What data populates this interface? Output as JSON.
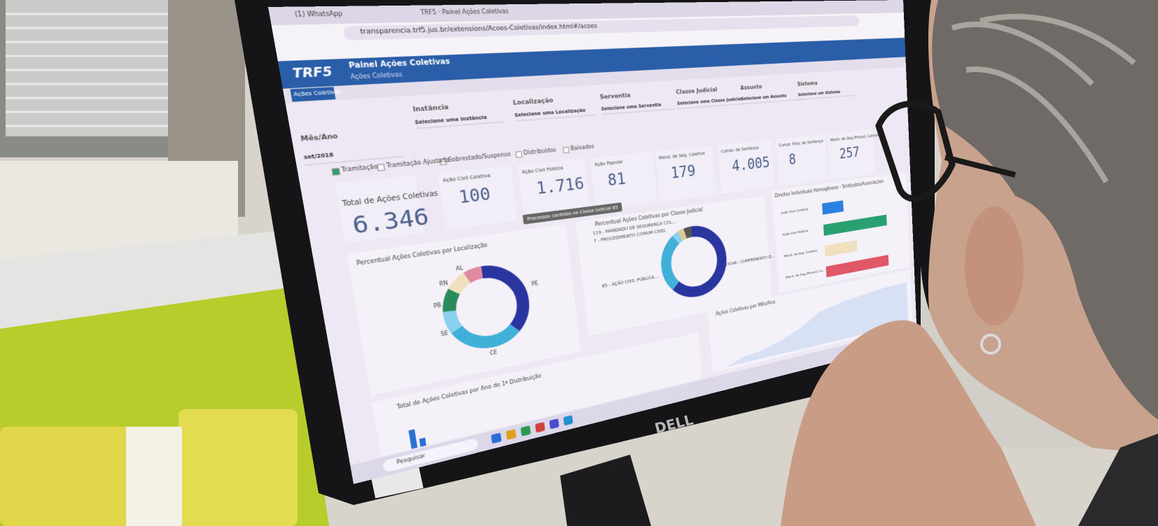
{
  "browser": {
    "tabs": [
      "(1) WhatsApp",
      "TRF5 · Painel Ações Coletivas"
    ],
    "url": "transparencia.trf5.jus.br/extensions/Acoes-Coletivas/index.html#/acoes"
  },
  "header": {
    "logo": "TRF5",
    "title": "Painel Ações Coletivas",
    "subtitle": "Ações Coletivas",
    "tab": "Ações Coletivas"
  },
  "filters": [
    {
      "label": "Mês/Ano",
      "value": "set/2016"
    },
    {
      "label": "Instância",
      "value": "Selecione uma Instância"
    },
    {
      "label": "Localização",
      "value": "Selecione uma Localização"
    },
    {
      "label": "Serventia",
      "value": "Selecione uma Serventia"
    },
    {
      "label": "Classe Judicial",
      "value": "Selecione uma Classe Judicial"
    },
    {
      "label": "Assunto",
      "value": "Selecione um Assunto"
    },
    {
      "label": "Sistema",
      "value": "Selecione um Sistema"
    }
  ],
  "checkboxes": [
    "Tramitação",
    "Tramitação Ajustada",
    "Sobrestado/Suspenso",
    "Distribuídos",
    "Baixados"
  ],
  "kpis": [
    {
      "label": "Total de Ações Coletivas",
      "value": "6.346"
    },
    {
      "label": "Ação Civil Coletiva",
      "value": "100"
    },
    {
      "label": "Ação Civil Pública",
      "value": "1.716"
    },
    {
      "label": "Ação Popular",
      "value": "81"
    },
    {
      "label": "Mand. de Seg. Coletivo",
      "value": "179"
    },
    {
      "label": "Cumpr. de Sentença",
      "value": "4.005"
    },
    {
      "label": "Cumpr. Prov. de Sentença",
      "value": "8"
    },
    {
      "label": "Mand. de Seg./Proced. Comum",
      "value": "257"
    }
  ],
  "tooltip": "Processos contidos na Classe Judicial 65",
  "charts": [
    {
      "title": "Percentual Ações Coletivas por Localização",
      "labels": [
        "AL",
        "RN",
        "PB",
        "SE",
        "CE",
        "PE"
      ]
    },
    {
      "title": "Percentual Ações Coletivas por Classe Judicial",
      "labels": [
        "119 - MANDADO DE SEGURANÇA COL...",
        "7 - PROCEDIMENTO COMUM CÍVEL",
        "65 - AÇÃO CIVIL PÚBLICA...",
        "15148 - CUMPRIMENTO D..."
      ]
    },
    {
      "title": "Direitos Individuais Homogêneos - Sindicatos/Associações",
      "labels": [
        "Ação Civil Coletiva",
        "Ação Civil Pública",
        "Mand. de Seg. Coletivo",
        "Mand. de Seg./Proced. Co..."
      ]
    },
    {
      "title": "Ações Coletivas por Mês/Ano"
    },
    {
      "title": "Total de Ações Coletivas por Ano de 1ª Distribuição"
    }
  ],
  "taskbar": {
    "search": "Pesquisar"
  },
  "monitor_brand": "DELL"
}
